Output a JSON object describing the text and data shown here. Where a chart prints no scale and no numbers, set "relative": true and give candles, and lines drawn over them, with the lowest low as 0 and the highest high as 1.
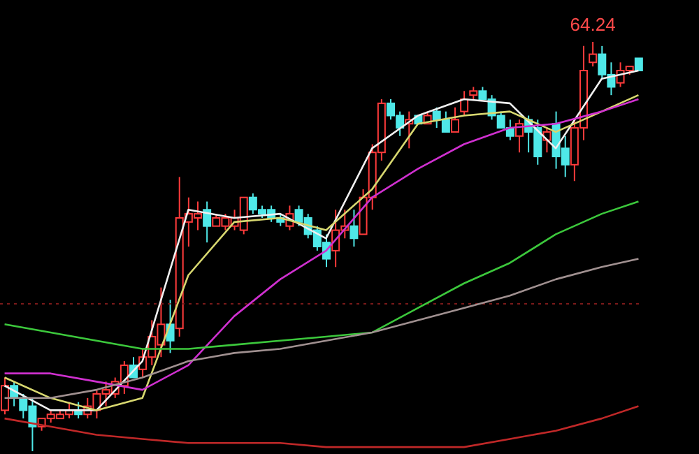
{
  "chart_data": {
    "type": "candlestick",
    "relative": true,
    "grid": false,
    "legend": false,
    "annotations": [
      "64.24"
    ],
    "categories": [
      null,
      null,
      null,
      null,
      null,
      null,
      null,
      null,
      null,
      null,
      null,
      null,
      null,
      null,
      null,
      null,
      null,
      null,
      null,
      null,
      null,
      null,
      null,
      null,
      null,
      null,
      null,
      null,
      null,
      null,
      null,
      null,
      null,
      null,
      null,
      null,
      null,
      null,
      null,
      null,
      null,
      null,
      null,
      null,
      null,
      null,
      null,
      null,
      null,
      null,
      null,
      null,
      null,
      null,
      null,
      null,
      null,
      null,
      null,
      null,
      null,
      null,
      null,
      null,
      null,
      null,
      null,
      null,
      null,
      null
    ],
    "ohlc": [
      [
        0.1,
        0.18,
        0.09,
        0.16
      ],
      [
        0.16,
        0.17,
        0.11,
        0.13
      ],
      [
        0.13,
        0.14,
        0.08,
        0.1
      ],
      [
        0.11,
        0.13,
        0,
        0.06
      ],
      [
        0.06,
        0.08,
        0.05,
        0.08
      ],
      [
        0.08,
        0.1,
        0.07,
        0.09
      ],
      [
        0.08,
        0.1,
        0.08,
        0.09
      ],
      [
        0.09,
        0.12,
        0.08,
        0.1
      ],
      [
        0.1,
        0.12,
        0.08,
        0.09
      ],
      [
        0.09,
        0.13,
        0.08,
        0.11
      ],
      [
        0.1,
        0.15,
        0.08,
        0.14
      ],
      [
        0.14,
        0.17,
        0.11,
        0.15
      ],
      [
        0.14,
        0.18,
        0.13,
        0.17
      ],
      [
        0.16,
        0.22,
        0.14,
        0.21
      ],
      [
        0.21,
        0.23,
        0.18,
        0.18
      ],
      [
        0.2,
        0.25,
        0.18,
        0.23
      ],
      [
        0.23,
        0.32,
        0.21,
        0.28
      ],
      [
        0.26,
        0.4,
        0.23,
        0.31
      ],
      [
        0.31,
        0.37,
        0.24,
        0.27
      ],
      [
        0.3,
        0.67,
        0.28,
        0.57
      ],
      [
        0.56,
        0.62,
        0.5,
        0.58
      ],
      [
        0.57,
        0.61,
        0.54,
        0.58
      ],
      [
        0.59,
        0.61,
        0.51,
        0.55
      ],
      [
        0.55,
        0.58,
        0.55,
        0.57
      ],
      [
        0.55,
        0.58,
        0.54,
        0.57
      ],
      [
        0.55,
        0.59,
        0.54,
        0.57
      ],
      [
        0.54,
        0.62,
        0.53,
        0.62
      ],
      [
        0.62,
        0.63,
        0.58,
        0.59
      ],
      [
        0.59,
        0.6,
        0.57,
        0.58
      ],
      [
        0.59,
        0.6,
        0.56,
        0.57
      ],
      [
        0.57,
        0.58,
        0.55,
        0.56
      ],
      [
        0.55,
        0.6,
        0.54,
        0.58
      ],
      [
        0.59,
        0.6,
        0.55,
        0.56
      ],
      [
        0.57,
        0.58,
        0.52,
        0.53
      ],
      [
        0.54,
        0.55,
        0.49,
        0.5
      ],
      [
        0.51,
        0.53,
        0.45,
        0.47
      ],
      [
        0.49,
        0.59,
        0.45,
        0.54
      ],
      [
        0.54,
        0.59,
        0.52,
        0.55
      ],
      [
        0.55,
        0.59,
        0.5,
        0.52
      ],
      [
        0.53,
        0.64,
        0.53,
        0.62
      ],
      [
        0.62,
        0.75,
        0.59,
        0.73
      ],
      [
        0.73,
        0.86,
        0.71,
        0.85
      ],
      [
        0.85,
        0.86,
        0.81,
        0.82
      ],
      [
        0.82,
        0.83,
        0.77,
        0.79
      ],
      [
        0.8,
        0.83,
        0.74,
        0.81
      ],
      [
        0.82,
        0.82,
        0.8,
        0.8
      ],
      [
        0.8,
        0.83,
        0.8,
        0.82
      ],
      [
        0.83,
        0.84,
        0.79,
        0.81
      ],
      [
        0.81,
        0.83,
        0.78,
        0.78
      ],
      [
        0.78,
        0.84,
        0.78,
        0.81
      ],
      [
        0.83,
        0.88,
        0.82,
        0.86
      ],
      [
        0.87,
        0.89,
        0.86,
        0.88
      ],
      [
        0.88,
        0.89,
        0.86,
        0.86
      ],
      [
        0.86,
        0.87,
        0.81,
        0.82
      ],
      [
        0.82,
        0.83,
        0.79,
        0.79
      ],
      [
        0.79,
        0.81,
        0.76,
        0.77
      ],
      [
        0.77,
        0.81,
        0.73,
        0.8
      ],
      [
        0.81,
        0.82,
        0.73,
        0.78
      ],
      [
        0.79,
        0.81,
        0.7,
        0.72
      ],
      [
        0.76,
        0.79,
        0.73,
        0.78
      ],
      [
        0.8,
        0.83,
        0.69,
        0.72
      ],
      [
        0.74,
        0.77,
        0.67,
        0.7
      ],
      [
        0.7,
        0.81,
        0.66,
        0.79
      ],
      [
        0.79,
        0.99,
        0.76,
        0.93
      ],
      [
        0.95,
        1,
        0.94,
        0.97
      ],
      [
        0.97,
        0.99,
        0.91,
        0.92
      ],
      [
        0.92,
        0.95,
        0.87,
        0.89
      ],
      [
        0.9,
        0.95,
        0.89,
        0.93
      ],
      [
        0.93,
        0.94,
        0.92,
        0.94
      ],
      [
        0.96,
        0.96,
        0.93,
        0.93
      ]
    ],
    "colors": [
      "#ff3b3b",
      "#4fe8e8",
      "#4fe8e8",
      "#4fe8e8",
      "#ff3b3b",
      "#ff3b3b",
      "#ff3b3b",
      "#ff3b3b",
      "#4fe8e8",
      "#ff3b3b",
      "#ff3b3b",
      "#ff3b3b",
      "#ff3b3b",
      "#ff3b3b",
      "#4fe8e8",
      "#ff3b3b",
      "#ff3b3b",
      "#ff3b3b",
      "#4fe8e8",
      "#ff3b3b",
      "#ff3b3b",
      "#ff3b3b",
      "#4fe8e8",
      "#ff3b3b",
      "#ff3b3b",
      "#ff3b3b",
      "#ff3b3b",
      "#4fe8e8",
      "#4fe8e8",
      "#4fe8e8",
      "#4fe8e8",
      "#ff3b3b",
      "#4fe8e8",
      "#4fe8e8",
      "#4fe8e8",
      "#4fe8e8",
      "#ff3b3b",
      "#ff3b3b",
      "#4fe8e8",
      "#ff3b3b",
      "#ff3b3b",
      "#ff3b3b",
      "#4fe8e8",
      "#4fe8e8",
      "#ff3b3b",
      "#4fe8e8",
      "#ff3b3b",
      "#4fe8e8",
      "#4fe8e8",
      "#ff3b3b",
      "#ff3b3b",
      "#ff3b3b",
      "#4fe8e8",
      "#4fe8e8",
      "#4fe8e8",
      "#4fe8e8",
      "#ff3b3b",
      "#4fe8e8",
      "#4fe8e8",
      "#ff3b3b",
      "#4fe8e8",
      "#4fe8e8",
      "#ff3b3b",
      "#ff3b3b",
      "#ff3b3b",
      "#4fe8e8",
      "#4fe8e8",
      "#ff3b3b",
      "#ff3b3b",
      "#4fe8e8"
    ],
    "ref_lines": [
      {
        "axis": "y",
        "value": 0.36,
        "color": "#7a1a1a",
        "line_style": "dotted"
      }
    ],
    "series": [
      {
        "type": "line",
        "color": "#f0f0f0",
        "values": [
          0.16,
          null,
          null,
          null,
          null,
          0.1,
          null,
          null,
          null,
          null,
          0.1,
          null,
          null,
          null,
          null,
          0.22,
          null,
          null,
          null,
          null,
          0.59,
          null,
          null,
          null,
          null,
          0.57,
          null,
          null,
          null,
          null,
          0.58,
          null,
          null,
          null,
          null,
          0.52,
          null,
          null,
          null,
          null,
          0.74,
          null,
          null,
          null,
          null,
          0.82,
          null,
          null,
          null,
          null,
          0.86,
          null,
          null,
          null,
          null,
          0.85,
          null,
          null,
          null,
          null,
          0.74,
          null,
          null,
          null,
          null,
          0.91,
          null,
          null,
          null,
          0.93
        ]
      },
      {
        "type": "line",
        "color": "#d8d870",
        "values": [
          0.18,
          null,
          null,
          null,
          null,
          0.13,
          null,
          null,
          null,
          null,
          0.1,
          null,
          null,
          null,
          null,
          0.13,
          null,
          null,
          null,
          null,
          0.43,
          null,
          null,
          null,
          null,
          0.56,
          null,
          null,
          null,
          null,
          0.57,
          null,
          null,
          null,
          null,
          0.54,
          null,
          null,
          null,
          null,
          0.64,
          null,
          null,
          null,
          null,
          0.8,
          null,
          null,
          null,
          null,
          0.82,
          null,
          null,
          null,
          null,
          0.83,
          null,
          null,
          null,
          null,
          0.78,
          null,
          null,
          null,
          null,
          0.83,
          null,
          null,
          null,
          0.87
        ]
      },
      {
        "type": "line",
        "color": "#d030d0",
        "values": [
          0.19,
          null,
          null,
          null,
          null,
          0.19,
          null,
          null,
          null,
          null,
          0.17,
          null,
          null,
          null,
          null,
          0.15,
          null,
          null,
          null,
          null,
          0.21,
          null,
          null,
          null,
          null,
          0.33,
          null,
          null,
          null,
          null,
          0.42,
          null,
          null,
          null,
          null,
          0.49,
          null,
          null,
          null,
          null,
          0.62,
          null,
          null,
          null,
          null,
          0.69,
          null,
          null,
          null,
          null,
          0.75,
          null,
          null,
          null,
          null,
          0.79,
          null,
          null,
          null,
          null,
          0.8,
          null,
          null,
          null,
          null,
          0.83,
          null,
          null,
          null,
          0.86
        ]
      },
      {
        "type": "line",
        "color": "#3cc83c",
        "values": [
          0.31,
          null,
          null,
          null,
          null,
          0.29,
          null,
          null,
          null,
          null,
          0.27,
          null,
          null,
          null,
          null,
          0.25,
          null,
          null,
          null,
          null,
          0.25,
          null,
          null,
          null,
          null,
          0.26,
          null,
          null,
          null,
          null,
          0.27,
          null,
          null,
          null,
          null,
          0.28,
          null,
          null,
          null,
          null,
          0.29,
          null,
          null,
          null,
          null,
          0.35,
          null,
          null,
          null,
          null,
          0.41,
          null,
          null,
          null,
          null,
          0.46,
          null,
          null,
          null,
          null,
          0.53,
          null,
          null,
          null,
          null,
          0.58,
          null,
          null,
          null,
          0.61
        ]
      },
      {
        "type": "line",
        "color": "#a09090",
        "values": [
          0.13,
          null,
          null,
          null,
          null,
          0.13,
          null,
          null,
          null,
          null,
          0.15,
          null,
          null,
          null,
          null,
          0.18,
          null,
          null,
          null,
          null,
          0.22,
          null,
          null,
          null,
          null,
          0.24,
          null,
          null,
          null,
          null,
          0.25,
          null,
          null,
          null,
          null,
          0.27,
          null,
          null,
          null,
          null,
          0.29,
          null,
          null,
          null,
          null,
          0.32,
          null,
          null,
          null,
          null,
          0.35,
          null,
          null,
          null,
          null,
          0.38,
          null,
          null,
          null,
          null,
          0.42,
          null,
          null,
          null,
          null,
          0.45,
          null,
          null,
          null,
          0.47
        ]
      },
      {
        "type": "line",
        "color": "#c02828",
        "values": [
          0.08,
          null,
          null,
          null,
          null,
          0.06,
          null,
          null,
          null,
          null,
          0.04,
          null,
          null,
          null,
          null,
          0.03,
          null,
          null,
          null,
          null,
          0.02,
          null,
          null,
          null,
          null,
          0.02,
          null,
          null,
          null,
          null,
          0.02,
          null,
          null,
          null,
          null,
          0.01,
          null,
          null,
          null,
          null,
          0.01,
          null,
          null,
          null,
          null,
          0.01,
          null,
          null,
          null,
          null,
          0.01,
          null,
          null,
          null,
          null,
          0.03,
          null,
          null,
          null,
          null,
          0.05,
          null,
          null,
          null,
          null,
          0.08,
          null,
          null,
          null,
          0.11
        ]
      }
    ]
  }
}
